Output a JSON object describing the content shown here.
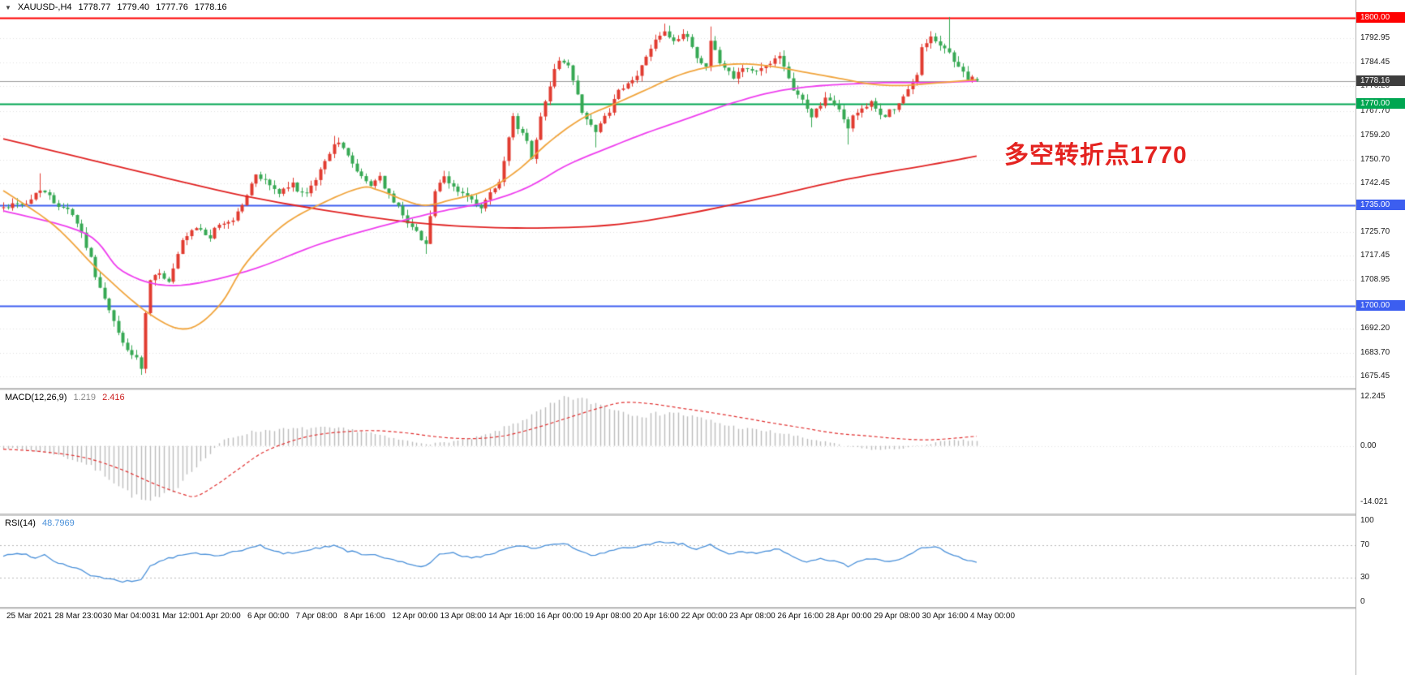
{
  "header": {
    "dropdown_icon": "▼",
    "symbol": "XAUUSD-,H4",
    "open": "1778.77",
    "high": "1779.40",
    "low": "1777.76",
    "close": "1778.16"
  },
  "annotation": {
    "text": "多空转折点1770",
    "color": "#e42320"
  },
  "colors": {
    "up": "#e13b30",
    "down": "#36a853",
    "ma_red": "#e02222",
    "ma_magenta": "#ee3eee",
    "ma_orange": "#f0a43c",
    "current_line": "#9a9a9a",
    "grid": "#e0e0e0",
    "macd_hist": "#bbbbbb",
    "macd_signal": "#e03030",
    "rsi_line": "#4a90d9",
    "level_dotted": "#b8b8b8"
  },
  "price_axis": {
    "ticks": [
      1792.95,
      1784.45,
      1776.2,
      1767.7,
      1759.2,
      1750.7,
      1742.45,
      1725.7,
      1717.45,
      1708.95,
      1692.2,
      1683.7,
      1675.45
    ],
    "badges": [
      {
        "text": "1800.00",
        "price": 1800.0,
        "bg": "#fe0000"
      },
      {
        "text": "1778.16",
        "price": 1778.16,
        "bg": "#3d3d3d"
      },
      {
        "text": "1770.00",
        "price": 1770.0,
        "bg": "#00a651"
      },
      {
        "text": "1735.00",
        "price": 1735.0,
        "bg": "#3c5ef0"
      },
      {
        "text": "1700.00",
        "price": 1700.0,
        "bg": "#3c5ef0"
      }
    ]
  },
  "chart_data": {
    "type": "candlestick",
    "symbol": "XAUUSD",
    "timeframe": "H4",
    "bars": 213,
    "price_top": 1800.0,
    "price_bottom": 1675.45,
    "current_bar_ohlc": {
      "open": 1778.77,
      "high": 1779.4,
      "low": 1777.76,
      "close": 1778.16
    },
    "hlines": [
      {
        "price": 1800.0,
        "color": "#fe0000",
        "label": "1800.00"
      },
      {
        "price": 1770.0,
        "color": "#00a651",
        "label": "1770.00"
      },
      {
        "price": 1735.0,
        "color": "#3c5ef0",
        "label": "1735.00"
      },
      {
        "price": 1700.0,
        "color": "#3c5ef0",
        "label": "1700.00"
      }
    ],
    "x_labels": [
      "25 Mar 2021",
      "28 Mar 23:00",
      "30 Mar 04:00",
      "31 Mar 12:00",
      "1 Apr 20:00",
      "6 Apr 00:00",
      "7 Apr 08:00",
      "8 Apr 16:00",
      "12 Apr 00:00",
      "13 Apr 08:00",
      "14 Apr 16:00",
      "16 Apr 00:00",
      "19 Apr 08:00",
      "20 Apr 16:00",
      "22 Apr 00:00",
      "23 Apr 08:00",
      "26 Apr 16:00",
      "28 Apr 00:00",
      "29 Apr 08:00",
      "30 Apr 16:00",
      "4 May 00:00"
    ],
    "close_path": [
      [
        0,
        1734
      ],
      [
        3,
        1736
      ],
      [
        5,
        1735
      ],
      [
        8,
        1741
      ],
      [
        11,
        1736
      ],
      [
        14,
        1734
      ],
      [
        16,
        1729
      ],
      [
        18,
        1721
      ],
      [
        21,
        1706
      ],
      [
        24,
        1694
      ],
      [
        26,
        1687
      ],
      [
        29,
        1681
      ],
      [
        30,
        1678
      ],
      [
        31,
        1697
      ],
      [
        32,
        1708
      ],
      [
        34,
        1712
      ],
      [
        36,
        1708
      ],
      [
        39,
        1722
      ],
      [
        42,
        1727
      ],
      [
        45,
        1724
      ],
      [
        47,
        1728
      ],
      [
        50,
        1730
      ],
      [
        53,
        1738
      ],
      [
        55,
        1746
      ],
      [
        58,
        1742
      ],
      [
        60,
        1739
      ],
      [
        63,
        1742
      ],
      [
        66,
        1738
      ],
      [
        68,
        1744
      ],
      [
        70,
        1750
      ],
      [
        72,
        1757
      ],
      [
        75,
        1753
      ],
      [
        77,
        1746
      ],
      [
        80,
        1742
      ],
      [
        82,
        1745
      ],
      [
        84,
        1738
      ],
      [
        87,
        1732
      ],
      [
        89,
        1727
      ],
      [
        92,
        1722
      ],
      [
        94,
        1740
      ],
      [
        96,
        1744
      ],
      [
        98,
        1741
      ],
      [
        101,
        1738
      ],
      [
        104,
        1733
      ],
      [
        105,
        1737
      ],
      [
        108,
        1742
      ],
      [
        110,
        1758
      ],
      [
        111,
        1765
      ],
      [
        114,
        1757
      ],
      [
        115,
        1752
      ],
      [
        117,
        1765
      ],
      [
        118,
        1772
      ],
      [
        121,
        1786
      ],
      [
        123,
        1783
      ],
      [
        125,
        1773
      ],
      [
        126,
        1768
      ],
      [
        129,
        1760
      ],
      [
        132,
        1768
      ],
      [
        134,
        1774
      ],
      [
        137,
        1778
      ],
      [
        139,
        1783
      ],
      [
        142,
        1793
      ],
      [
        144,
        1796
      ],
      [
        146,
        1792
      ],
      [
        149,
        1794
      ],
      [
        151,
        1786
      ],
      [
        153,
        1783
      ],
      [
        154,
        1793
      ],
      [
        156,
        1784
      ],
      [
        159,
        1780
      ],
      [
        161,
        1783
      ],
      [
        164,
        1781
      ],
      [
        167,
        1785
      ],
      [
        169,
        1786
      ],
      [
        171,
        1778
      ],
      [
        174,
        1771
      ],
      [
        176,
        1766
      ],
      [
        179,
        1772
      ],
      [
        182,
        1768
      ],
      [
        184,
        1762
      ],
      [
        186,
        1768
      ],
      [
        189,
        1770
      ],
      [
        191,
        1766
      ],
      [
        194,
        1768
      ],
      [
        196,
        1772
      ],
      [
        199,
        1780
      ],
      [
        200,
        1790
      ],
      [
        202,
        1794
      ],
      [
        204,
        1790
      ],
      [
        206,
        1788
      ],
      [
        208,
        1783
      ],
      [
        210,
        1779
      ],
      [
        212,
        1778.16
      ]
    ],
    "wick_highs": [
      [
        8,
        1746
      ],
      [
        72,
        1759
      ],
      [
        154,
        1797
      ],
      [
        206,
        1800.3
      ],
      [
        144,
        1798
      ]
    ],
    "wick_lows": [
      [
        30,
        1676
      ],
      [
        92,
        1718
      ],
      [
        129,
        1755
      ],
      [
        176,
        1762
      ],
      [
        184,
        1756
      ]
    ],
    "moving_averages": [
      {
        "name": "ma-slow-red",
        "color_key": "ma_red",
        "path": [
          [
            0,
            1758
          ],
          [
            26,
            1748
          ],
          [
            53,
            1738
          ],
          [
            79,
            1731
          ],
          [
            96,
            1728
          ],
          [
            114,
            1727
          ],
          [
            132,
            1728
          ],
          [
            149,
            1732
          ],
          [
            167,
            1738
          ],
          [
            184,
            1744
          ],
          [
            202,
            1749
          ],
          [
            212,
            1752
          ]
        ]
      },
      {
        "name": "ma-mid-magenta",
        "color_key": "ma_magenta",
        "path": [
          [
            0,
            1733
          ],
          [
            18,
            1725
          ],
          [
            26,
            1712
          ],
          [
            37,
            1707
          ],
          [
            53,
            1712
          ],
          [
            70,
            1722
          ],
          [
            88,
            1730
          ],
          [
            96,
            1733
          ],
          [
            105,
            1736
          ],
          [
            114,
            1741
          ],
          [
            123,
            1749
          ],
          [
            132,
            1755
          ],
          [
            140,
            1760
          ],
          [
            149,
            1765
          ],
          [
            158,
            1770
          ],
          [
            167,
            1774
          ],
          [
            175,
            1776
          ],
          [
            184,
            1777
          ],
          [
            193,
            1777.5
          ],
          [
            202,
            1777.5
          ],
          [
            212,
            1778
          ]
        ]
      },
      {
        "name": "ma-fast-orange",
        "color_key": "ma_orange",
        "path": [
          [
            0,
            1740
          ],
          [
            11,
            1728
          ],
          [
            21,
            1712
          ],
          [
            32,
            1697
          ],
          [
            40,
            1692
          ],
          [
            47,
            1700
          ],
          [
            53,
            1715
          ],
          [
            61,
            1728
          ],
          [
            70,
            1736
          ],
          [
            78,
            1741
          ],
          [
            82,
            1740
          ],
          [
            91,
            1735
          ],
          [
            98,
            1737
          ],
          [
            105,
            1740
          ],
          [
            112,
            1747
          ],
          [
            119,
            1757
          ],
          [
            126,
            1765
          ],
          [
            133,
            1770
          ],
          [
            140,
            1775
          ],
          [
            147,
            1780
          ],
          [
            154,
            1783
          ],
          [
            161,
            1784
          ],
          [
            168,
            1783
          ],
          [
            175,
            1781
          ],
          [
            182,
            1779
          ],
          [
            189,
            1777
          ],
          [
            196,
            1776.5
          ],
          [
            204,
            1777.5
          ],
          [
            212,
            1778.5
          ]
        ]
      }
    ],
    "macd": {
      "label": "MACD(12,26,9)",
      "value_main": "1.219",
      "value_signal": "2.416",
      "axis": {
        "max": 12.245,
        "min": -14.021,
        "ticks": [
          {
            "text": "12.245",
            "value": 12.245
          },
          {
            "text": "0.00",
            "value": 0
          },
          {
            "text": "-14.021",
            "value": -14.021
          }
        ]
      },
      "hist_path": [
        [
          0,
          -0.5
        ],
        [
          5,
          -1
        ],
        [
          11,
          -2
        ],
        [
          18,
          -4.5
        ],
        [
          23,
          -8
        ],
        [
          27,
          -11.5
        ],
        [
          30,
          -13.5
        ],
        [
          32,
          -14
        ],
        [
          35,
          -12.5
        ],
        [
          38,
          -10
        ],
        [
          40,
          -7
        ],
        [
          43,
          -4
        ],
        [
          45,
          -2
        ],
        [
          46,
          -0.5
        ],
        [
          48,
          1.5
        ],
        [
          51,
          2.5
        ],
        [
          54,
          3.5
        ],
        [
          58,
          4
        ],
        [
          63,
          4.2
        ],
        [
          68,
          4.5
        ],
        [
          74,
          4.2
        ],
        [
          79,
          3.5
        ],
        [
          84,
          2
        ],
        [
          89,
          1
        ],
        [
          93,
          0.5
        ],
        [
          97,
          1
        ],
        [
          102,
          1.8
        ],
        [
          106,
          3
        ],
        [
          110,
          5
        ],
        [
          115,
          7.5
        ],
        [
          119,
          10
        ],
        [
          123,
          12.2
        ],
        [
          126,
          11.5
        ],
        [
          131,
          10
        ],
        [
          135,
          8.5
        ],
        [
          140,
          7.5
        ],
        [
          145,
          8.5
        ],
        [
          149,
          7.5
        ],
        [
          153,
          6.5
        ],
        [
          158,
          5
        ],
        [
          162,
          4.2
        ],
        [
          167,
          3.6
        ],
        [
          171,
          2.8
        ],
        [
          175,
          1.8
        ],
        [
          180,
          0.8
        ],
        [
          183,
          0
        ],
        [
          187,
          -0.6
        ],
        [
          190,
          -1
        ],
        [
          194,
          -0.8
        ],
        [
          197,
          -0.4
        ],
        [
          201,
          0.4
        ],
        [
          204,
          1
        ],
        [
          208,
          1.4
        ],
        [
          212,
          1.219
        ]
      ],
      "signal_path": [
        [
          0,
          -0.8
        ],
        [
          9,
          -1.5
        ],
        [
          18,
          -3
        ],
        [
          26,
          -6
        ],
        [
          33,
          -9.5
        ],
        [
          39,
          -12
        ],
        [
          42,
          -12.5
        ],
        [
          46,
          -10
        ],
        [
          51,
          -6
        ],
        [
          56,
          -2
        ],
        [
          61,
          0.5
        ],
        [
          67,
          2.5
        ],
        [
          74,
          3.5
        ],
        [
          81,
          3.8
        ],
        [
          88,
          3.2
        ],
        [
          95,
          2.2
        ],
        [
          102,
          1.8
        ],
        [
          109,
          2.5
        ],
        [
          116,
          4.5
        ],
        [
          123,
          7
        ],
        [
          130,
          9.5
        ],
        [
          135,
          10.8
        ],
        [
          141,
          10.5
        ],
        [
          147,
          9.5
        ],
        [
          153,
          8.5
        ],
        [
          160,
          7.2
        ],
        [
          167,
          5.8
        ],
        [
          174,
          4.5
        ],
        [
          181,
          3.2
        ],
        [
          188,
          2.5
        ],
        [
          195,
          1.8
        ],
        [
          201,
          1.5
        ],
        [
          206,
          1.8
        ],
        [
          212,
          2.416
        ]
      ]
    },
    "rsi": {
      "label": "RSI(14)",
      "value": "48.7969",
      "axis": {
        "max": 100,
        "min": 0,
        "levels": [
          70,
          30
        ],
        "ticks": [
          {
            "text": "100",
            "value": 100
          },
          {
            "text": "70",
            "value": 70
          },
          {
            "text": "30",
            "value": 30
          },
          {
            "text": "0",
            "value": 0
          }
        ]
      },
      "path": [
        [
          0,
          57
        ],
        [
          4,
          60
        ],
        [
          7,
          55
        ],
        [
          9,
          58
        ],
        [
          12,
          48
        ],
        [
          16,
          42
        ],
        [
          19,
          33
        ],
        [
          23,
          28
        ],
        [
          26,
          25
        ],
        [
          30,
          27
        ],
        [
          32,
          45
        ],
        [
          35,
          52
        ],
        [
          39,
          58
        ],
        [
          42,
          60
        ],
        [
          46,
          57
        ],
        [
          49,
          60
        ],
        [
          53,
          65
        ],
        [
          56,
          70
        ],
        [
          58,
          64
        ],
        [
          61,
          60
        ],
        [
          65,
          62
        ],
        [
          68,
          66
        ],
        [
          72,
          70
        ],
        [
          75,
          63
        ],
        [
          79,
          58
        ],
        [
          82,
          57
        ],
        [
          86,
          50
        ],
        [
          89,
          46
        ],
        [
          92,
          44
        ],
        [
          95,
          58
        ],
        [
          98,
          60
        ],
        [
          102,
          54
        ],
        [
          105,
          57
        ],
        [
          109,
          65
        ],
        [
          112,
          70
        ],
        [
          116,
          66
        ],
        [
          119,
          70
        ],
        [
          122,
          73
        ],
        [
          125,
          64
        ],
        [
          128,
          57
        ],
        [
          132,
          62
        ],
        [
          135,
          66
        ],
        [
          139,
          69
        ],
        [
          142,
          73
        ],
        [
          145,
          74
        ],
        [
          148,
          71
        ],
        [
          151,
          64
        ],
        [
          154,
          70
        ],
        [
          158,
          60
        ],
        [
          161,
          62
        ],
        [
          164,
          60
        ],
        [
          167,
          64
        ],
        [
          169,
          65
        ],
        [
          172,
          57
        ],
        [
          175,
          49
        ],
        [
          178,
          53
        ],
        [
          182,
          49
        ],
        [
          184,
          44
        ],
        [
          187,
          52
        ],
        [
          189,
          54
        ],
        [
          192,
          50
        ],
        [
          195,
          52
        ],
        [
          197,
          57
        ],
        [
          200,
          66
        ],
        [
          203,
          68
        ],
        [
          205,
          63
        ],
        [
          208,
          55
        ],
        [
          210,
          51
        ],
        [
          212,
          48.8
        ]
      ]
    }
  }
}
